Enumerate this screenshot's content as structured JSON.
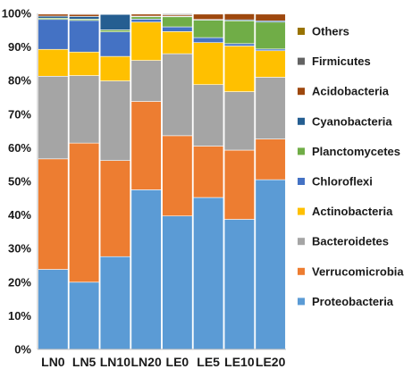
{
  "chart_data": {
    "type": "bar",
    "stacked": true,
    "percent": true,
    "categories": [
      "LN0",
      "LN5",
      "LN10",
      "LN20",
      "LE0",
      "LE5",
      "LE10",
      "LE20"
    ],
    "ylim": [
      0,
      100
    ],
    "yticks": [
      "0%",
      "10%",
      "20%",
      "30%",
      "40%",
      "50%",
      "60%",
      "70%",
      "80%",
      "90%",
      "100%"
    ],
    "series": [
      {
        "name": "Proteobacteria",
        "color": "#5B9BD5",
        "values": [
          23.8,
          20.0,
          27.6,
          47.5,
          39.7,
          45.2,
          38.7,
          50.5
        ]
      },
      {
        "name": "Verrucomicrobia",
        "color": "#ED7D31",
        "values": [
          32.9,
          41.4,
          28.6,
          26.3,
          23.9,
          15.3,
          20.6,
          12.1
        ]
      },
      {
        "name": "Bacteroidetes",
        "color": "#A5A5A5",
        "values": [
          24.6,
          20.1,
          23.7,
          12.2,
          24.4,
          18.3,
          17.4,
          18.4
        ]
      },
      {
        "name": "Actinobacteria",
        "color": "#FFC000",
        "values": [
          8.0,
          7.0,
          7.3,
          11.4,
          6.6,
          12.5,
          13.6,
          7.9
        ]
      },
      {
        "name": "Chloroflexi",
        "color": "#4472C4",
        "values": [
          8.9,
          9.4,
          7.3,
          0.9,
          1.4,
          1.5,
          0.7,
          0.5
        ]
      },
      {
        "name": "Planctomycetes",
        "color": "#70AD47",
        "values": [
          0.4,
          0.4,
          0.6,
          0.7,
          3.0,
          5.2,
          6.8,
          8.0
        ]
      },
      {
        "name": "Cyanobacteria",
        "color": "#255E91",
        "values": [
          0.6,
          0.8,
          4.6,
          0.2,
          0.2,
          0.2,
          0.3,
          0.4
        ]
      },
      {
        "name": "Acidobacteria",
        "color": "#9E480E",
        "values": [
          0.6,
          0.6,
          0.1,
          0.6,
          0.4,
          1.6,
          1.8,
          2.0
        ]
      },
      {
        "name": "Firmicutes",
        "color": "#636363",
        "values": [
          0.1,
          0.2,
          0.1,
          0.1,
          0.3,
          0.1,
          0.1,
          0.1
        ]
      },
      {
        "name": "Others",
        "color": "#997300",
        "values": [
          0.1,
          0.1,
          0.1,
          0.1,
          0.1,
          0.1,
          0.0,
          0.1
        ]
      }
    ],
    "legend": {
      "position": "right",
      "order": [
        "Others",
        "Firmicutes",
        "Acidobacteria",
        "Cyanobacteria",
        "Planctomycetes",
        "Chloroflexi",
        "Actinobacteria",
        "Bacteroidetes",
        "Verrucomicrobia",
        "Proteobacteria"
      ]
    },
    "grid": false,
    "title": "",
    "xlabel": "",
    "ylabel": ""
  }
}
